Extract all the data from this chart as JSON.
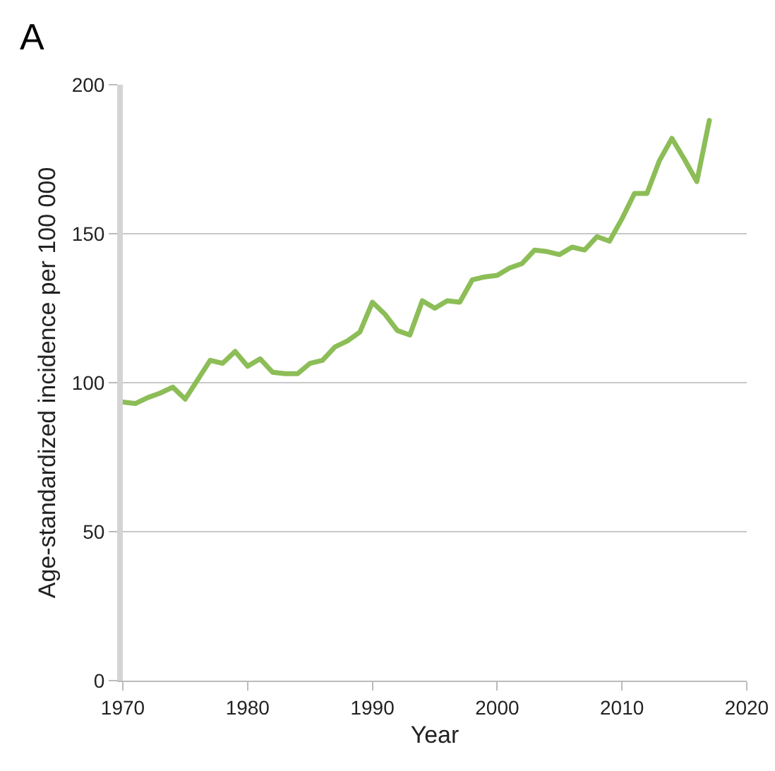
{
  "chart_data": {
    "type": "line",
    "xlabel": "Year",
    "ylabel": "Age-standardized incidence per 100 000",
    "annotations": [
      "A"
    ],
    "x": [
      1970,
      1971,
      1972,
      1973,
      1974,
      1975,
      1976,
      1977,
      1978,
      1979,
      1980,
      1981,
      1982,
      1983,
      1984,
      1985,
      1986,
      1987,
      1988,
      1989,
      1990,
      1991,
      1992,
      1993,
      1994,
      1995,
      1996,
      1997,
      1998,
      1999,
      2000,
      2001,
      2002,
      2003,
      2004,
      2005,
      2006,
      2007,
      2008,
      2009,
      2010,
      2011,
      2012,
      2013,
      2014,
      2015,
      2016,
      2017
    ],
    "series": [
      {
        "color": "#8cbd57",
        "values": [
          93.5,
          93,
          95,
          96.5,
          98.5,
          94.5,
          101,
          107.5,
          106.5,
          110.5,
          105.5,
          108,
          103.5,
          103,
          103,
          106.5,
          107.5,
          112,
          114,
          117,
          127,
          123,
          117.5,
          116,
          127.5,
          125,
          127.5,
          127,
          134.5,
          135.5,
          136,
          138.5,
          140,
          144.5,
          144,
          143,
          145.5,
          144.5,
          149,
          147.5,
          155,
          163.5,
          163.5,
          174.5,
          182,
          175,
          167.5,
          188
        ]
      }
    ],
    "xlim": [
      1970,
      2020
    ],
    "xticks": [
      1970,
      1980,
      1990,
      2000,
      2010,
      2020
    ],
    "ylim": [
      0,
      200
    ],
    "yticks": [
      0,
      50,
      100,
      150,
      200
    ],
    "grid": "y",
    "legend": false,
    "marker": "none",
    "line_style": "solid"
  }
}
